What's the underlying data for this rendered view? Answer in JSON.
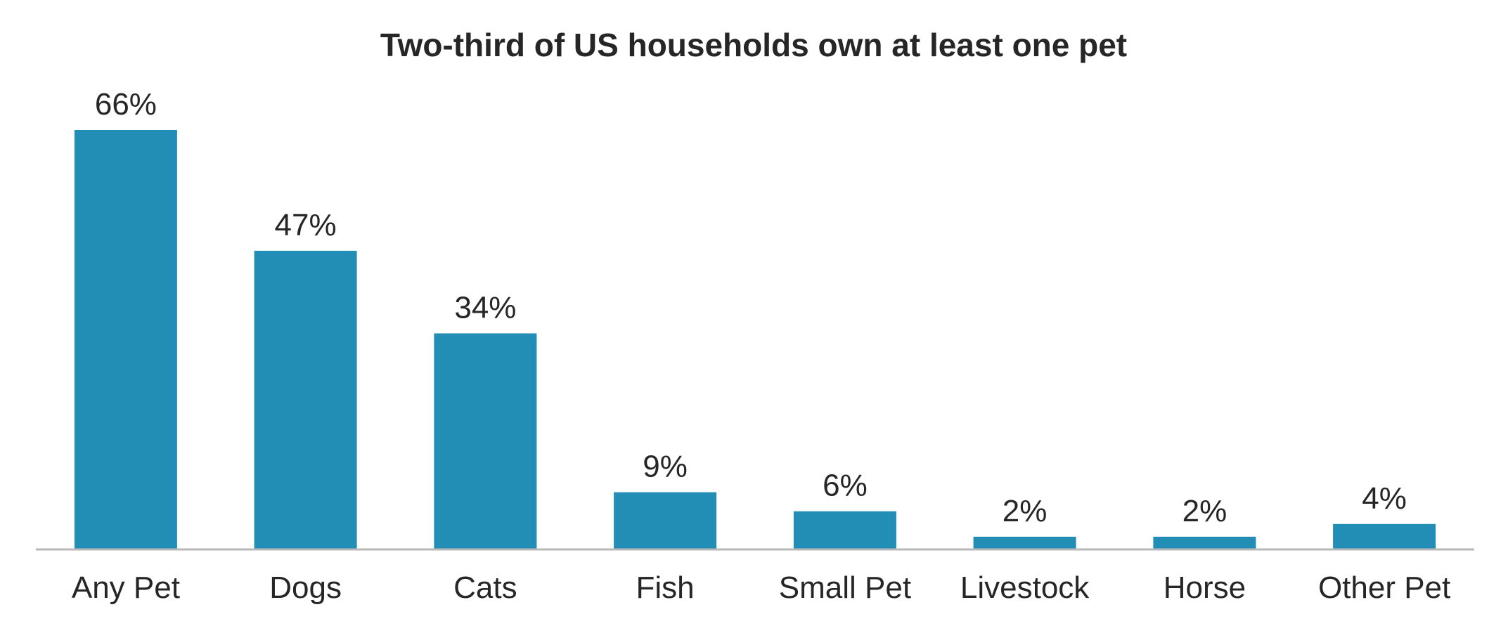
{
  "chart_data": {
    "type": "bar",
    "title": "Two-third of US households own at least one pet",
    "categories": [
      "Any Pet",
      "Dogs",
      "Cats",
      "Fish",
      "Small Pet",
      "Livestock",
      "Horse",
      "Other Pet"
    ],
    "values": [
      66,
      47,
      34,
      9,
      6,
      2,
      2,
      4
    ],
    "value_labels": [
      "66%",
      "47%",
      "34%",
      "9%",
      "6%",
      "2%",
      "2%",
      "4%"
    ],
    "xlabel": "",
    "ylabel": "",
    "ylim": [
      0,
      66
    ],
    "grid": false,
    "legend": "none",
    "bar_color": "#228DB5",
    "axis_color": "#B8B8B8",
    "text_color": "#262626"
  }
}
